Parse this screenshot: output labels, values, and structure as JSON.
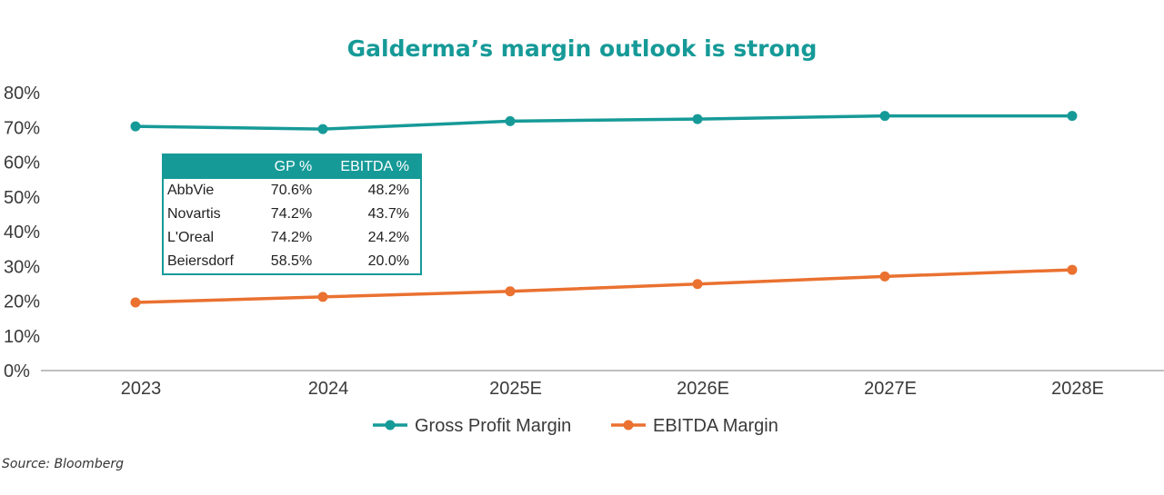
{
  "chart_data": {
    "type": "line",
    "title": "Galderma’s margin outlook is strong",
    "categories": [
      "2023",
      "2024",
      "2025E",
      "2026E",
      "2027E",
      "2028E"
    ],
    "series": [
      {
        "name": "Gross Profit Margin",
        "color": "#169a98",
        "values": [
          70.3,
          69.5,
          71.8,
          72.4,
          73.3,
          73.3
        ]
      },
      {
        "name": "EBITDA Margin",
        "color": "#ea7130",
        "values": [
          19.6,
          21.2,
          22.8,
          24.9,
          27.1,
          29.0
        ]
      }
    ],
    "y_ticks": [
      "0%",
      "10%",
      "20%",
      "30%",
      "40%",
      "50%",
      "60%",
      "70%",
      "80%"
    ],
    "ylim": [
      0,
      80
    ],
    "y_unit": "%",
    "grid": false,
    "legend": "bottom-center"
  },
  "inset_table": {
    "headers": [
      "",
      "GP %",
      "EBITDA %"
    ],
    "rows": [
      [
        "AbbVie",
        "70.6%",
        "48.2%"
      ],
      [
        "Novartis",
        "74.2%",
        "43.7%"
      ],
      [
        "L'Oreal",
        "74.2%",
        "24.2%"
      ],
      [
        "Beiersdorf",
        "58.5%",
        "20.0%"
      ]
    ]
  },
  "source": "Source: Bloomberg",
  "colors": {
    "title": "#169a98",
    "table_border": "#169a98",
    "axis": "#bfbfbf"
  }
}
